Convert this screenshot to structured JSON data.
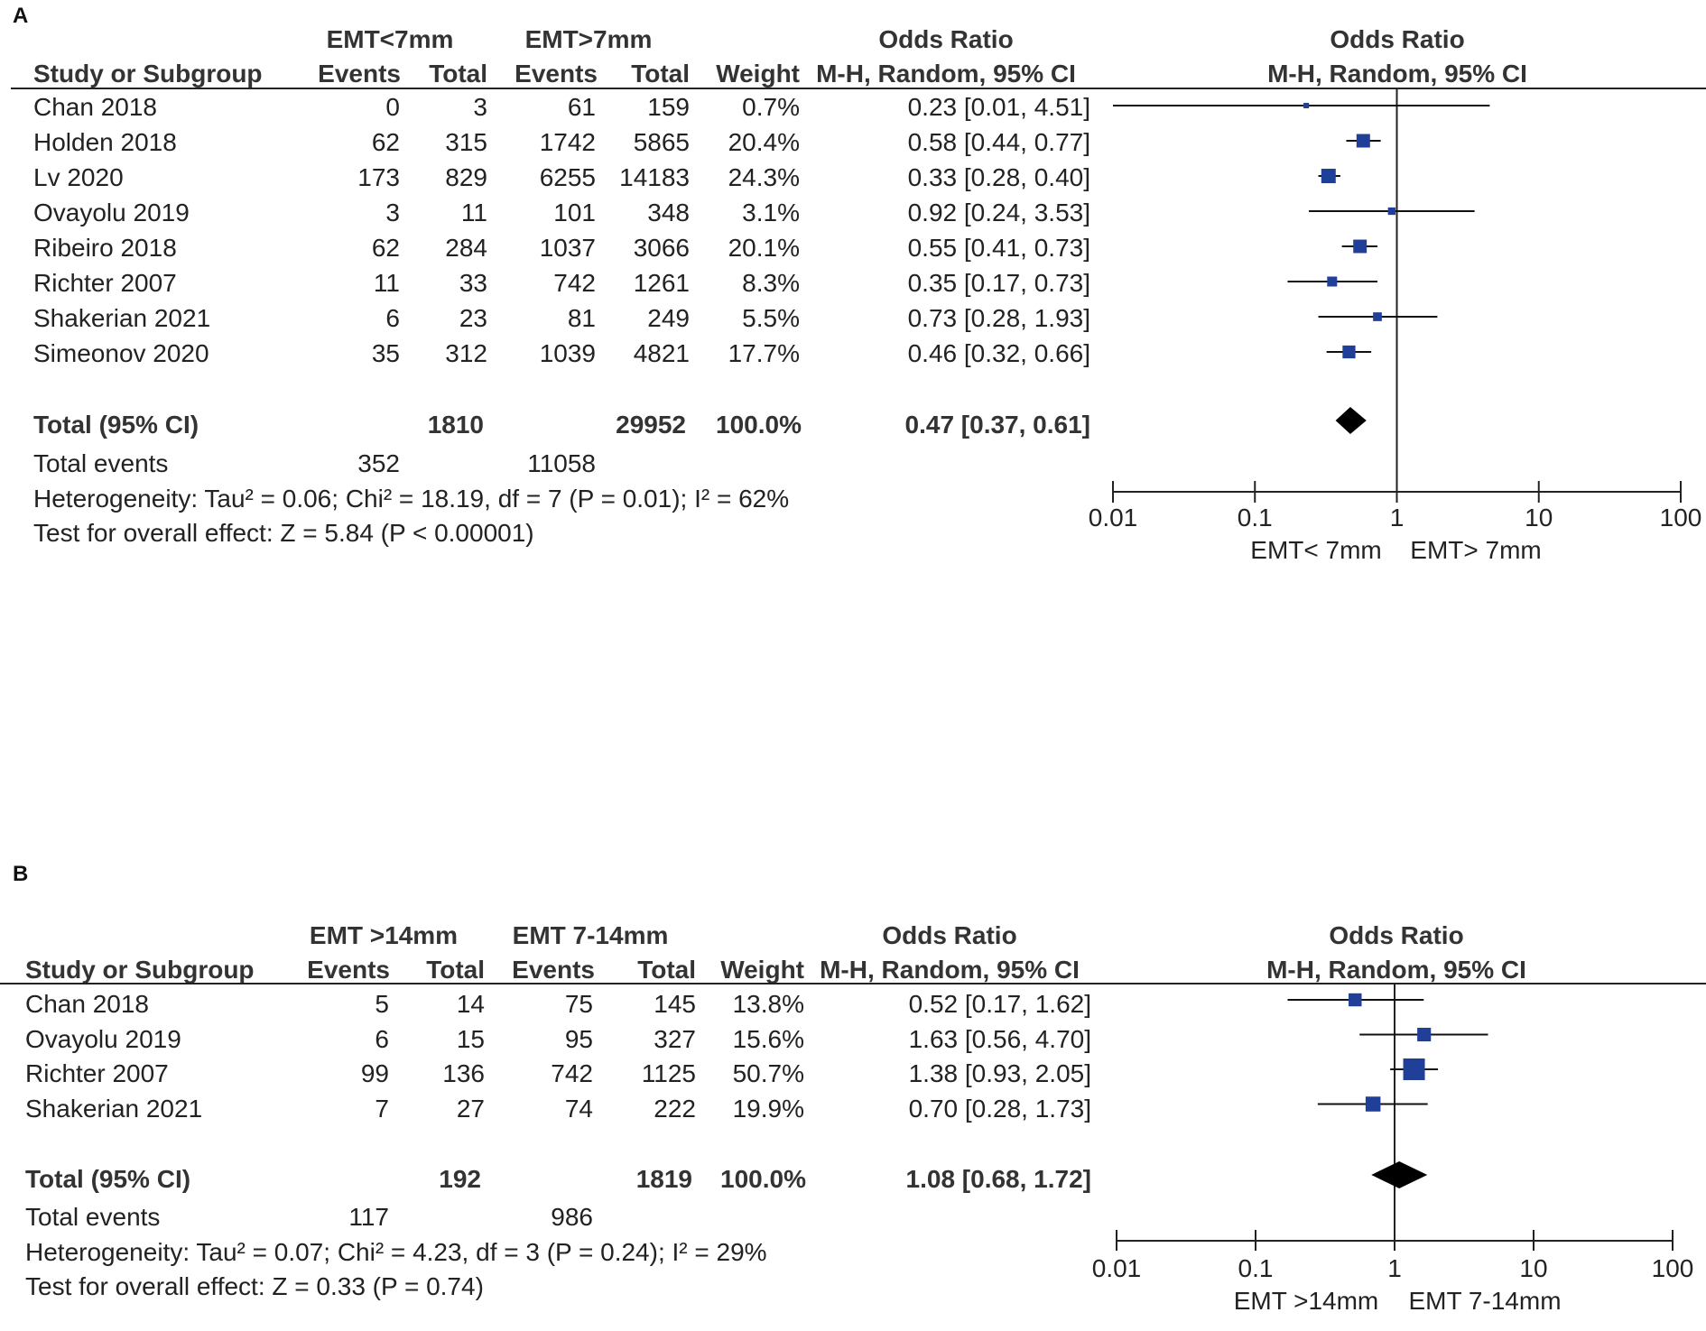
{
  "chart_data": [
    {
      "type": "forest",
      "panel_label": "A",
      "group1_label": "EMT<7mm",
      "group2_label": "EMT>7mm",
      "headers": {
        "study": "Study or Subgroup",
        "events": "Events",
        "total": "Total",
        "weight": "Weight",
        "or_title": "Odds Ratio",
        "or_method": "M-H, Random, 95% CI",
        "plot_title": "Odds Ratio",
        "plot_method": "M-H, Random, 95% CI"
      },
      "studies": [
        {
          "name": "Chan 2018",
          "e1": "0",
          "t1": "3",
          "e2": "61",
          "t2": "159",
          "weight": "0.7%",
          "ci_text": "0.23 [0.01, 4.51]",
          "or": 0.23,
          "lo": 0.01,
          "hi": 4.51,
          "w": 0.7
        },
        {
          "name": "Holden 2018",
          "e1": "62",
          "t1": "315",
          "e2": "1742",
          "t2": "5865",
          "weight": "20.4%",
          "ci_text": "0.58 [0.44, 0.77]",
          "or": 0.58,
          "lo": 0.44,
          "hi": 0.77,
          "w": 20.4
        },
        {
          "name": "Lv 2020",
          "e1": "173",
          "t1": "829",
          "e2": "6255",
          "t2": "14183",
          "weight": "24.3%",
          "ci_text": "0.33 [0.28, 0.40]",
          "or": 0.33,
          "lo": 0.28,
          "hi": 0.4,
          "w": 24.3
        },
        {
          "name": "Ovayolu 2019",
          "e1": "3",
          "t1": "11",
          "e2": "101",
          "t2": "348",
          "weight": "3.1%",
          "ci_text": "0.92 [0.24, 3.53]",
          "or": 0.92,
          "lo": 0.24,
          "hi": 3.53,
          "w": 3.1
        },
        {
          "name": "Ribeiro 2018",
          "e1": "62",
          "t1": "284",
          "e2": "1037",
          "t2": "3066",
          "weight": "20.1%",
          "ci_text": "0.55 [0.41, 0.73]",
          "or": 0.55,
          "lo": 0.41,
          "hi": 0.73,
          "w": 20.1
        },
        {
          "name": "Richter 2007",
          "e1": "11",
          "t1": "33",
          "e2": "742",
          "t2": "1261",
          "weight": "8.3%",
          "ci_text": "0.35 [0.17, 0.73]",
          "or": 0.35,
          "lo": 0.17,
          "hi": 0.73,
          "w": 8.3
        },
        {
          "name": "Shakerian 2021",
          "e1": "6",
          "t1": "23",
          "e2": "81",
          "t2": "249",
          "weight": "5.5%",
          "ci_text": "0.73 [0.28, 1.93]",
          "or": 0.73,
          "lo": 0.28,
          "hi": 1.93,
          "w": 5.5
        },
        {
          "name": "Simeonov 2020",
          "e1": "35",
          "t1": "312",
          "e2": "1039",
          "t2": "4821",
          "weight": "17.7%",
          "ci_text": "0.46 [0.32, 0.66]",
          "or": 0.46,
          "lo": 0.32,
          "hi": 0.66,
          "w": 17.7
        }
      ],
      "total": {
        "label": "Total (95% CI)",
        "t1": "1810",
        "t2": "29952",
        "weight": "100.0%",
        "ci_text": "0.47 [0.37, 0.61]",
        "or": 0.47,
        "lo": 0.37,
        "hi": 0.61
      },
      "total_events": {
        "label": "Total events",
        "e1": "352",
        "e2": "11058"
      },
      "heterogeneity": "Heterogeneity: Tau² = 0.06; Chi² = 18.19, df = 7 (P = 0.01); I² = 62%",
      "overall_effect": "Test for overall effect: Z = 5.84 (P < 0.00001)",
      "axis": {
        "scale": "log",
        "ticks": [
          "0.01",
          "0.1",
          "1",
          "10",
          "100"
        ],
        "tick_values": [
          0.01,
          0.1,
          1,
          10,
          100
        ],
        "left_label": "EMT< 7mm",
        "right_label": "EMT> 7mm"
      }
    },
    {
      "type": "forest",
      "panel_label": "B",
      "group1_label": "EMT >14mm",
      "group2_label": "EMT 7-14mm",
      "headers": {
        "study": "Study or Subgroup",
        "events": "Events",
        "total": "Total",
        "weight": "Weight",
        "or_title": "Odds Ratio",
        "or_method": "M-H, Random, 95% CI",
        "plot_title": "Odds Ratio",
        "plot_method": "M-H, Random, 95% CI"
      },
      "studies": [
        {
          "name": "Chan 2018",
          "e1": "5",
          "t1": "14",
          "e2": "75",
          "t2": "145",
          "weight": "13.8%",
          "ci_text": "0.52 [0.17, 1.62]",
          "or": 0.52,
          "lo": 0.17,
          "hi": 1.62,
          "w": 13.8
        },
        {
          "name": "Ovayolu 2019",
          "e1": "6",
          "t1": "15",
          "e2": "95",
          "t2": "327",
          "weight": "15.6%",
          "ci_text": "1.63 [0.56, 4.70]",
          "or": 1.63,
          "lo": 0.56,
          "hi": 4.7,
          "w": 15.6
        },
        {
          "name": "Richter 2007",
          "e1": "99",
          "t1": "136",
          "e2": "742",
          "t2": "1125",
          "weight": "50.7%",
          "ci_text": "1.38 [0.93, 2.05]",
          "or": 1.38,
          "lo": 0.93,
          "hi": 2.05,
          "w": 50.7
        },
        {
          "name": "Shakerian 2021",
          "e1": "7",
          "t1": "27",
          "e2": "74",
          "t2": "222",
          "weight": "19.9%",
          "ci_text": "0.70 [0.28, 1.73]",
          "or": 0.7,
          "lo": 0.28,
          "hi": 1.73,
          "w": 19.9
        }
      ],
      "total": {
        "label": "Total (95% CI)",
        "t1": "192",
        "t2": "1819",
        "weight": "100.0%",
        "ci_text": "1.08 [0.68, 1.72]",
        "or": 1.08,
        "lo": 0.68,
        "hi": 1.72
      },
      "total_events": {
        "label": "Total events",
        "e1": "117",
        "e2": "986"
      },
      "heterogeneity": "Heterogeneity: Tau² = 0.07; Chi² = 4.23, df = 3 (P = 0.24); I² = 29%",
      "overall_effect": "Test for overall effect: Z = 0.33 (P = 0.74)",
      "axis": {
        "scale": "log",
        "ticks": [
          "0.01",
          "0.1",
          "1",
          "10",
          "100"
        ],
        "tick_values": [
          0.01,
          0.1,
          1,
          10,
          100
        ],
        "left_label": "EMT >14mm",
        "right_label": "EMT 7-14mm"
      }
    }
  ],
  "colors": {
    "marker": "#1f3f99",
    "diamond": "#000000",
    "line": "#222222"
  }
}
